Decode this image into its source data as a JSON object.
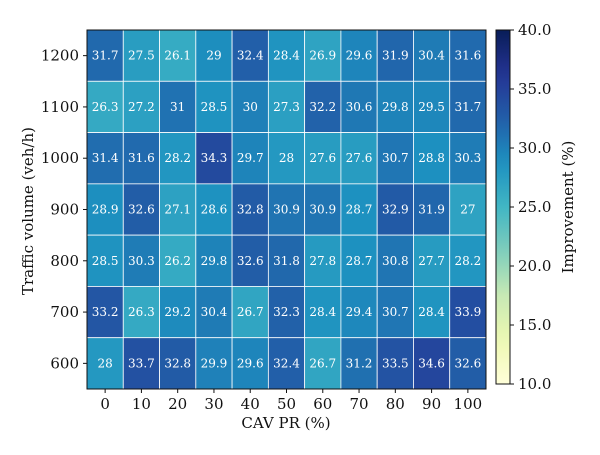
{
  "chart_data": {
    "type": "heatmap",
    "xlabel": "CAV PR (%)",
    "ylabel": "Traffic volume (veh/h)",
    "x_categories": [
      "0",
      "10",
      "20",
      "30",
      "40",
      "50",
      "60",
      "70",
      "80",
      "90",
      "100"
    ],
    "y_categories": [
      "1200",
      "1100",
      "1000",
      "900",
      "800",
      "700",
      "600"
    ],
    "values": [
      [
        31.7,
        27.5,
        26.1,
        29,
        32.4,
        28.4,
        26.9,
        29.6,
        31.9,
        30.4,
        31.6
      ],
      [
        26.3,
        27.2,
        31,
        28.5,
        30,
        27.3,
        32.2,
        30.6,
        29.8,
        29.5,
        31.7
      ],
      [
        31.4,
        31.6,
        28.2,
        34.3,
        29.7,
        28,
        27.6,
        27.6,
        30.7,
        28.8,
        30.3
      ],
      [
        28.9,
        32.6,
        27.1,
        28.6,
        32.8,
        30.9,
        30.9,
        28.7,
        32.9,
        31.9,
        27
      ],
      [
        28.5,
        30.3,
        26.2,
        29.8,
        32.6,
        31.8,
        27.8,
        28.7,
        30.8,
        27.7,
        28.2
      ],
      [
        33.2,
        26.3,
        29.2,
        30.4,
        26.7,
        32.3,
        28.4,
        29.4,
        30.7,
        28.4,
        33.9
      ],
      [
        28,
        33.7,
        32.8,
        29.9,
        29.6,
        32.4,
        26.7,
        31.2,
        33.5,
        34.6,
        32.6
      ]
    ],
    "colorbar": {
      "label": "Improvement (%)",
      "range": [
        10,
        40
      ],
      "ticks": [
        "10.0",
        "15.0",
        "20.0",
        "25.0",
        "30.0",
        "35.0",
        "40.0"
      ],
      "colormap": "YlGnBu"
    },
    "grid": true
  }
}
